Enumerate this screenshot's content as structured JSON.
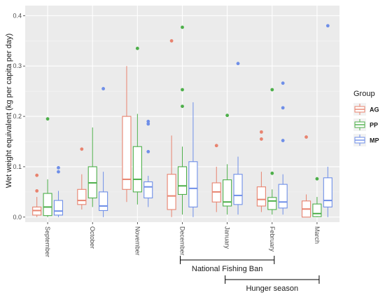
{
  "chart_data": {
    "type": "boxplot",
    "ylabel": "Wet weight equivalent (kg per capita per day)",
    "xlabel": "",
    "ylim": [
      -0.01,
      0.42
    ],
    "yticks": [
      0.0,
      0.1,
      0.2,
      0.3,
      0.4
    ],
    "ytick_labels": [
      "0.0",
      "0.1",
      "0.2",
      "0.3",
      "0.4"
    ],
    "grid": true,
    "categories": [
      "September",
      "October",
      "November",
      "December",
      "January",
      "February",
      "March"
    ],
    "legend": {
      "title": "Group",
      "position": "right"
    },
    "series": [
      {
        "name": "AG",
        "color": "#E8836F",
        "boxes": [
          {
            "min": 0.0,
            "q1": 0.004,
            "median": 0.013,
            "q3": 0.02,
            "max": 0.04,
            "outliers": [
              0.052,
              0.083
            ]
          },
          {
            "min": 0.015,
            "q1": 0.025,
            "median": 0.033,
            "q3": 0.055,
            "max": 0.085,
            "outliers": [
              0.135
            ]
          },
          {
            "min": 0.03,
            "q1": 0.055,
            "median": 0.075,
            "q3": 0.2,
            "max": 0.3,
            "outliers": []
          },
          {
            "min": 0.0,
            "q1": 0.015,
            "median": 0.042,
            "q3": 0.085,
            "max": 0.162,
            "outliers": [
              0.35
            ]
          },
          {
            "min": 0.01,
            "q1": 0.03,
            "median": 0.05,
            "q3": 0.068,
            "max": 0.1,
            "outliers": [
              0.142
            ]
          },
          {
            "min": 0.01,
            "q1": 0.022,
            "median": 0.035,
            "q3": 0.06,
            "max": 0.09,
            "outliers": [
              0.155,
              0.169
            ]
          },
          {
            "min": 0.0,
            "q1": 0.0,
            "median": 0.016,
            "q3": 0.032,
            "max": 0.045,
            "outliers": [
              0.159
            ]
          }
        ]
      },
      {
        "name": "PP",
        "color": "#4DAF4A",
        "boxes": [
          {
            "min": 0.0,
            "q1": 0.003,
            "median": 0.02,
            "q3": 0.047,
            "max": 0.075,
            "outliers": [
              0.195
            ]
          },
          {
            "min": 0.02,
            "q1": 0.038,
            "median": 0.068,
            "q3": 0.1,
            "max": 0.178,
            "outliers": []
          },
          {
            "min": 0.025,
            "q1": 0.05,
            "median": 0.075,
            "q3": 0.14,
            "max": 0.205,
            "outliers": [
              0.335
            ]
          },
          {
            "min": 0.005,
            "q1": 0.045,
            "median": 0.062,
            "q3": 0.1,
            "max": 0.14,
            "outliers": [
              0.22,
              0.253,
              0.377
            ]
          },
          {
            "min": 0.005,
            "q1": 0.022,
            "median": 0.03,
            "q3": 0.074,
            "max": 0.105,
            "outliers": [
              0.202
            ]
          },
          {
            "min": 0.005,
            "q1": 0.015,
            "median": 0.032,
            "q3": 0.039,
            "max": 0.055,
            "outliers": [
              0.087,
              0.253
            ]
          },
          {
            "min": 0.0,
            "q1": 0.001,
            "median": 0.007,
            "q3": 0.026,
            "max": 0.04,
            "outliers": [
              0.076
            ]
          }
        ]
      },
      {
        "name": "MP",
        "color": "#6F8FE8",
        "boxes": [
          {
            "min": 0.0,
            "q1": 0.004,
            "median": 0.012,
            "q3": 0.033,
            "max": 0.052,
            "outliers": [
              0.09,
              0.098
            ]
          },
          {
            "min": 0.0,
            "q1": 0.013,
            "median": 0.022,
            "q3": 0.05,
            "max": 0.09,
            "outliers": [
              0.255
            ]
          },
          {
            "min": 0.02,
            "q1": 0.038,
            "median": 0.06,
            "q3": 0.07,
            "max": 0.082,
            "outliers": [
              0.13,
              0.185,
              0.19
            ]
          },
          {
            "min": 0.0,
            "q1": 0.02,
            "median": 0.057,
            "q3": 0.11,
            "max": 0.228,
            "outliers": []
          },
          {
            "min": 0.005,
            "q1": 0.025,
            "median": 0.043,
            "q3": 0.085,
            "max": 0.12,
            "outliers": [
              0.305
            ]
          },
          {
            "min": 0.005,
            "q1": 0.018,
            "median": 0.03,
            "q3": 0.065,
            "max": 0.085,
            "outliers": [
              0.152,
              0.217,
              0.266
            ]
          },
          {
            "min": 0.0,
            "q1": 0.02,
            "median": 0.033,
            "q3": 0.078,
            "max": 0.1,
            "outliers": [
              0.38
            ]
          }
        ]
      }
    ]
  },
  "annotations": [
    {
      "label": "National Fishing Ban",
      "from": "December",
      "to": "February"
    },
    {
      "label": "Hunger season",
      "from": "January",
      "to": "March"
    }
  ]
}
